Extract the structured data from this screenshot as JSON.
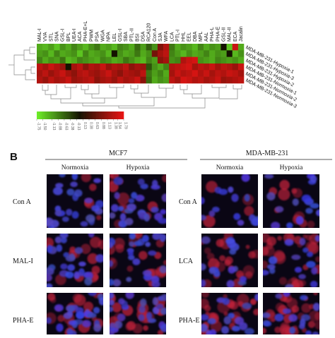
{
  "heatmap": {
    "columns": [
      "MAL-I",
      "VVA",
      "STL",
      "SNA",
      "GSL-I",
      "BPL",
      "UEA-I",
      "ACA",
      "PHA-E+L",
      "PWM",
      "PSA",
      "WGA",
      "NPA",
      "LEL",
      "GSL-I",
      "SBA",
      "PTL-II",
      "BSI",
      "DSA",
      "RCA120",
      "Con A",
      "SJA",
      "WFA",
      "LCA",
      "PTL-I",
      "HHL",
      "EEL",
      "DBA",
      "MPL",
      "AAL",
      "PHA-L",
      "PHA-E",
      "GSL-II",
      "MAL-II",
      "ECA",
      "Jacalin"
    ],
    "rows": [
      "MDA-MB-231-Hypoxia-1",
      "MDA-MB-231-Hypoxia-3",
      "MDA-MB-231-Hypoxia-2",
      "MDA-MB-231-Normoxia-1",
      "MDA-MB-231-Normoxia-2",
      "MDA-MB-231-Normoxia-3"
    ],
    "values": [
      [
        -1.2,
        -1.3,
        -1.1,
        -1.4,
        -1.0,
        -1.2,
        -0.9,
        -1.1,
        -1.3,
        -1.0,
        -0.8,
        -1.2,
        -1.1,
        -1.3,
        -0.9,
        -1.0,
        -1.2,
        -0.7,
        -1.1,
        -0.6,
        -1.0,
        0.9,
        1.3,
        -0.8,
        -1.2,
        -1.0,
        -1.1,
        -1.3,
        -0.9,
        -1.2,
        -1.0,
        -1.1,
        0.0,
        -1.4,
        1.5,
        -1.2
      ],
      [
        -1.1,
        -1.0,
        -1.3,
        -0.9,
        -1.2,
        -1.1,
        -1.0,
        -1.4,
        -0.9,
        -1.2,
        -1.1,
        -1.0,
        -1.3,
        0.0,
        -1.0,
        -1.2,
        -1.1,
        -0.8,
        -1.2,
        -1.0,
        0.8,
        1.2,
        1.4,
        -0.9,
        -1.1,
        -1.3,
        -1.0,
        -1.2,
        -1.1,
        -0.9,
        -1.2,
        -1.0,
        -1.1,
        0.0,
        -1.3,
        -1.0
      ],
      [
        -0.9,
        -1.2,
        -1.0,
        -1.1,
        -0.8,
        -1.3,
        -1.2,
        -0.9,
        -1.0,
        -1.1,
        -1.2,
        -0.9,
        -1.0,
        -1.2,
        -1.1,
        -0.8,
        -1.0,
        -1.2,
        -1.3,
        -0.9,
        -1.1,
        1.0,
        1.2,
        -1.0,
        -0.9,
        1.3,
        1.5,
        1.6,
        -1.0,
        -1.1,
        -1.2,
        -0.9,
        -1.0,
        -1.1,
        -1.0,
        -1.2
      ],
      [
        1.4,
        1.2,
        1.5,
        1.3,
        1.1,
        0.0,
        1.2,
        1.4,
        1.0,
        1.3,
        1.2,
        1.5,
        1.1,
        1.3,
        1.2,
        1.4,
        1.0,
        1.2,
        1.1,
        -0.5,
        -1.0,
        -1.2,
        -0.9,
        1.3,
        1.4,
        1.5,
        1.6,
        1.2,
        1.4,
        1.3,
        1.5,
        1.2,
        1.4,
        1.3,
        1.1,
        1.5
      ],
      [
        1.2,
        1.4,
        1.1,
        1.3,
        1.5,
        1.2,
        1.0,
        1.3,
        1.4,
        1.2,
        1.1,
        1.3,
        1.5,
        1.2,
        1.0,
        1.3,
        1.2,
        1.1,
        1.4,
        -0.8,
        -1.1,
        -0.9,
        -1.2,
        1.2,
        1.5,
        1.3,
        1.4,
        1.6,
        1.3,
        1.5,
        1.2,
        1.4,
        1.3,
        1.5,
        1.4,
        1.2
      ],
      [
        1.3,
        1.1,
        1.4,
        1.2,
        1.3,
        1.5,
        1.1,
        1.2,
        1.3,
        1.4,
        1.0,
        1.2,
        1.3,
        1.1,
        1.4,
        1.2,
        1.3,
        1.5,
        1.0,
        -0.7,
        -1.2,
        -1.0,
        -1.1,
        1.4,
        1.2,
        1.6,
        1.5,
        1.3,
        1.4,
        1.2,
        1.3,
        1.5,
        1.1,
        1.2,
        1.3,
        1.4
      ]
    ],
    "colorbar_ticks": [
      {
        "value": -1.75,
        "label": "-1.75"
      },
      {
        "value": -1.5,
        "label": "-1.50"
      },
      {
        "value": -1.13,
        "label": "-1.13"
      },
      {
        "value": -0.88,
        "label": "-0.88"
      },
      {
        "value": -0.63,
        "label": "-0.63"
      },
      {
        "value": -0.38,
        "label": "-0.38"
      },
      {
        "value": -0.13,
        "label": "-0.13"
      },
      {
        "value": 0.13,
        "label": "0.13"
      },
      {
        "value": 0.38,
        "label": "0.38"
      },
      {
        "value": 0.63,
        "label": "0.63"
      },
      {
        "value": 0.88,
        "label": "0.88"
      },
      {
        "value": 1.13,
        "label": "1.13"
      },
      {
        "value": 1.38,
        "label": "1.38"
      },
      {
        "value": 1.54,
        "label": "1.54"
      },
      {
        "value": 1.79,
        "label": "1.79"
      }
    ]
  },
  "panel_b": {
    "letter": "B",
    "groups": [
      {
        "title": "MCF7",
        "conditions": [
          "Normoxia",
          "Hypoxia"
        ],
        "lectins": [
          "Con A",
          "MAL-I",
          "PHA-E"
        ]
      },
      {
        "title": "MDA-MB-231",
        "conditions": [
          "Normoxia",
          "Hypoxia"
        ],
        "lectins": [
          "Con A",
          "LCA",
          "PHA-E"
        ]
      }
    ]
  }
}
